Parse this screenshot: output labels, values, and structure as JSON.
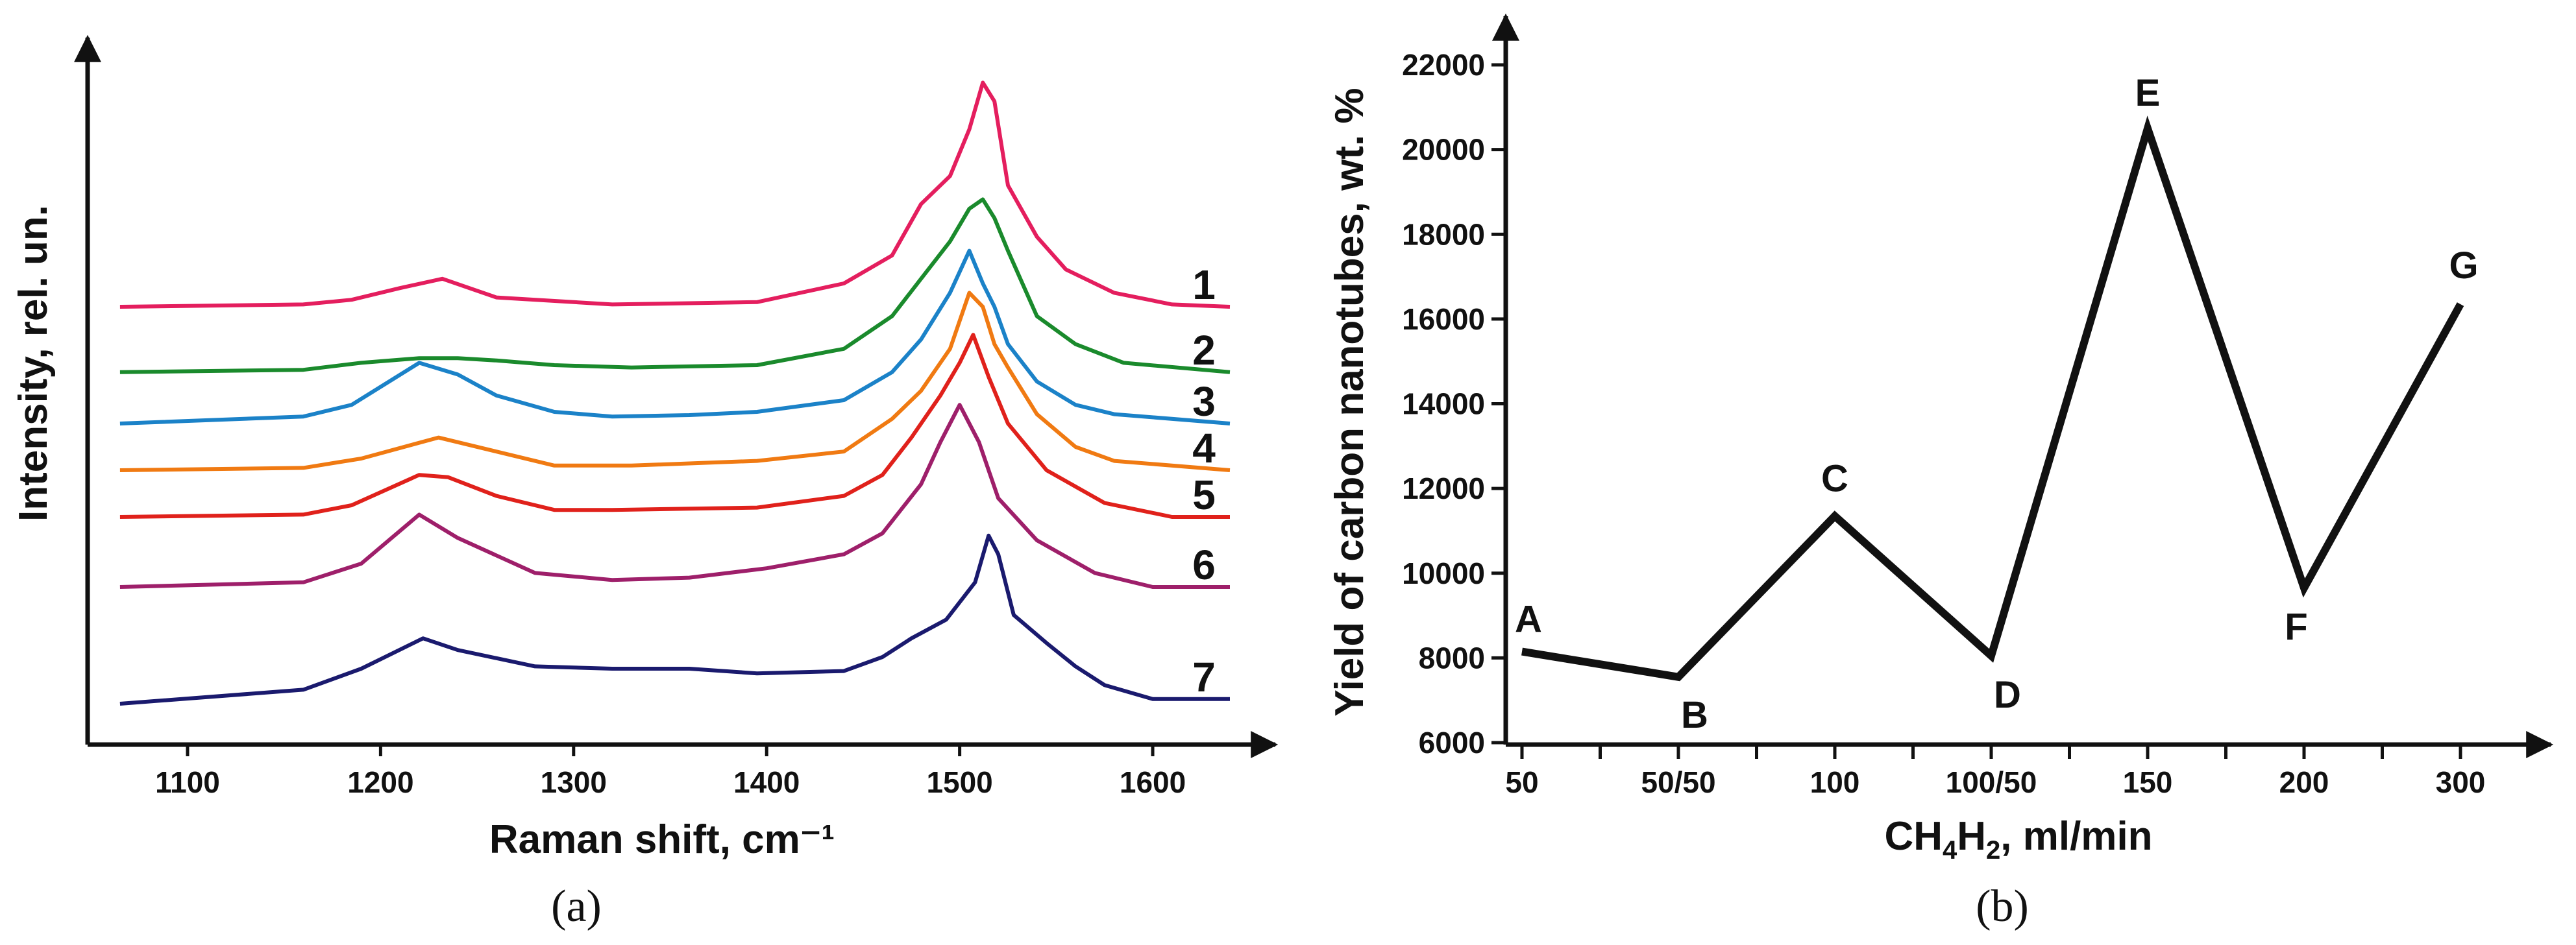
{
  "chart_data": [
    {
      "type": "line",
      "panel_label": "(a)",
      "xlabel": "Raman shift, cm⁻¹",
      "ylabel": "Intensity, rel. un.",
      "xlim": [
        1060,
        1640
      ],
      "x_ticks": [
        "1100",
        "1200",
        "1300",
        "1400",
        "1500",
        "1600"
      ],
      "x_tick_values": [
        1100,
        1200,
        1300,
        1400,
        1500,
        1600
      ],
      "y_ticks": [],
      "series": [
        {
          "name": "1",
          "color": "#e41e5e",
          "offset": 6.0,
          "x": [
            1065,
            1160,
            1185,
            1210,
            1232,
            1260,
            1320,
            1395,
            1440,
            1465,
            1480,
            1495,
            1505,
            1512,
            1518,
            1525,
            1540,
            1555,
            1580,
            1610,
            1640
          ],
          "y": [
            0,
            0.05,
            0.15,
            0.4,
            0.6,
            0.2,
            0.05,
            0.1,
            0.5,
            1.1,
            2.2,
            2.8,
            3.8,
            4.8,
            4.4,
            2.6,
            1.5,
            0.8,
            0.3,
            0.05,
            0
          ]
        },
        {
          "name": "2",
          "color": "#1a8a2c",
          "offset": 4.6,
          "x": [
            1065,
            1160,
            1190,
            1220,
            1240,
            1260,
            1290,
            1330,
            1395,
            1440,
            1465,
            1480,
            1495,
            1505,
            1512,
            1518,
            1525,
            1540,
            1560,
            1585,
            1640
          ],
          "y": [
            0,
            0.05,
            0.2,
            0.3,
            0.3,
            0.25,
            0.15,
            0.1,
            0.15,
            0.5,
            1.2,
            2.0,
            2.8,
            3.5,
            3.7,
            3.3,
            2.6,
            1.2,
            0.6,
            0.2,
            0
          ]
        },
        {
          "name": "3",
          "color": "#1b82c8",
          "offset": 3.5,
          "x": [
            1065,
            1160,
            1185,
            1220,
            1240,
            1260,
            1290,
            1320,
            1360,
            1395,
            1440,
            1465,
            1480,
            1495,
            1505,
            1512,
            1518,
            1525,
            1540,
            1560,
            1580,
            1640
          ],
          "y": [
            0,
            0.15,
            0.4,
            1.3,
            1.05,
            0.6,
            0.25,
            0.15,
            0.18,
            0.25,
            0.5,
            1.1,
            1.8,
            2.8,
            3.7,
            3.0,
            2.5,
            1.7,
            0.9,
            0.4,
            0.2,
            0
          ]
        },
        {
          "name": "4",
          "color": "#f07a12",
          "offset": 2.5,
          "x": [
            1065,
            1160,
            1190,
            1230,
            1260,
            1290,
            1330,
            1395,
            1440,
            1465,
            1480,
            1495,
            1505,
            1512,
            1518,
            1525,
            1540,
            1560,
            1580,
            1640
          ],
          "y": [
            0,
            0.05,
            0.25,
            0.7,
            0.4,
            0.1,
            0.1,
            0.2,
            0.4,
            1.1,
            1.7,
            2.6,
            3.8,
            3.5,
            2.7,
            2.2,
            1.2,
            0.5,
            0.2,
            0
          ]
        },
        {
          "name": "5",
          "color": "#e0211b",
          "offset": 1.5,
          "x": [
            1065,
            1160,
            1185,
            1220,
            1235,
            1260,
            1290,
            1320,
            1395,
            1440,
            1460,
            1475,
            1490,
            1500,
            1507,
            1515,
            1525,
            1545,
            1575,
            1610,
            1640
          ],
          "y": [
            0,
            0.05,
            0.25,
            0.9,
            0.85,
            0.45,
            0.15,
            0.15,
            0.2,
            0.45,
            0.9,
            1.7,
            2.6,
            3.3,
            3.9,
            3.0,
            2.0,
            1.0,
            0.3,
            0,
            0
          ]
        },
        {
          "name": "6",
          "color": "#9e1f6a",
          "offset": 0,
          "x": [
            1065,
            1160,
            1190,
            1220,
            1240,
            1280,
            1320,
            1360,
            1400,
            1440,
            1460,
            1480,
            1490,
            1500,
            1510,
            1520,
            1540,
            1570,
            1600,
            1640
          ],
          "y": [
            0,
            0.1,
            0.5,
            1.55,
            1.05,
            0.3,
            0.15,
            0.2,
            0.4,
            0.7,
            1.15,
            2.2,
            3.1,
            3.9,
            3.1,
            1.9,
            1.0,
            0.3,
            0,
            0
          ]
        },
        {
          "name": "7",
          "color": "#1a1a6e",
          "offset": -2.5,
          "x": [
            1065,
            1160,
            1190,
            1222,
            1240,
            1280,
            1320,
            1360,
            1395,
            1440,
            1460,
            1475,
            1493,
            1508,
            1515,
            1520,
            1528,
            1545,
            1560,
            1575,
            1600,
            1640
          ],
          "y": [
            0,
            0.3,
            0.75,
            1.4,
            1.15,
            0.8,
            0.75,
            0.75,
            0.65,
            0.7,
            1.0,
            1.4,
            1.8,
            2.6,
            3.6,
            3.2,
            1.9,
            1.3,
            0.8,
            0.4,
            0.1,
            0.1
          ]
        }
      ]
    },
    {
      "type": "line",
      "panel_label": "(b)",
      "xlabel_main": "CH",
      "xlabel_sub1": "4",
      "xlabel_mid": "H",
      "xlabel_sub2": "2",
      "xlabel_tail": ", ml/min",
      "ylabel": "Yield of carbon nanotubes, wt. %",
      "ylim": [
        6000,
        22000
      ],
      "y_ticks": [
        "6000",
        "8000",
        "10000",
        "12000",
        "14000",
        "16000",
        "18000",
        "20000",
        "22000"
      ],
      "y_tick_values": [
        6000,
        8000,
        10000,
        12000,
        14000,
        16000,
        18000,
        20000,
        22000
      ],
      "categories": [
        "50",
        "50/50",
        "100",
        "100/50",
        "150",
        "200",
        "300"
      ],
      "color": "#111111",
      "points": [
        {
          "label": "A",
          "x": 0,
          "y": 8150
        },
        {
          "label": "B",
          "x": 1,
          "y": 7550
        },
        {
          "label": "C",
          "x": 2,
          "y": 11350
        },
        {
          "label": "D",
          "x": 3,
          "y": 8050
        },
        {
          "label": "E",
          "x": 4,
          "y": 20500
        },
        {
          "label": "F",
          "x": 5,
          "y": 9650
        },
        {
          "label": "G",
          "x": 6,
          "y": 16350
        }
      ]
    }
  ]
}
